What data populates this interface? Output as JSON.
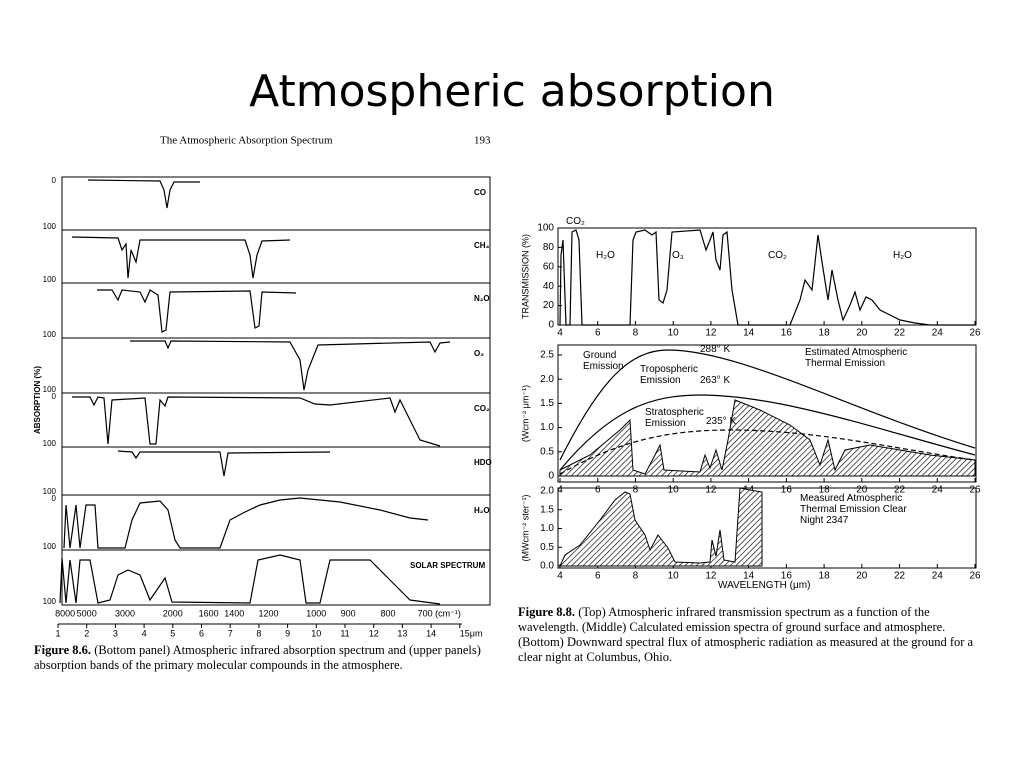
{
  "title": "Atmospheric absorption",
  "figure_8_6": {
    "running_head": "The Atmospheric Absorption Spectrum",
    "page_number": "193",
    "y_axis_label": "ABSORPTION (%)",
    "panels": [
      {
        "label": "CO",
        "ticks": [
          "0",
          "100"
        ]
      },
      {
        "label": "CH₄",
        "ticks": [
          "100"
        ]
      },
      {
        "label": "N₂O",
        "ticks": [
          "100"
        ]
      },
      {
        "label": "O₃",
        "ticks": [
          "100"
        ]
      },
      {
        "label": "CO₂",
        "ticks": [
          "0",
          "100"
        ]
      },
      {
        "label": "HDO",
        "ticks": [
          "100"
        ]
      },
      {
        "label": "H₂O",
        "ticks": [
          "0",
          "100"
        ]
      },
      {
        "label": "SOLAR SPECTRUM",
        "ticks": [
          "100"
        ]
      }
    ],
    "wavenumber_ticks": [
      "8000",
      "5000",
      "3000",
      "2000",
      "1600",
      "1400",
      "1200",
      "1000",
      "900",
      "800",
      "700 (cm⁻¹)"
    ],
    "wavelength_ticks": [
      "1",
      "2",
      "3",
      "4",
      "5",
      "6",
      "7",
      "8",
      "9",
      "10",
      "11",
      "12",
      "13",
      "14",
      "15μm"
    ],
    "caption": {
      "label": "Figure 8.6.",
      "text": "(Bottom panel) Atmospheric infrared absorption spectrum and (upper panels) absorption bands of the primary molecular compounds in the atmosphere."
    }
  },
  "figure_8_8": {
    "top": {
      "y_axis_label": "TRANSMISSION (%)",
      "yticks": [
        "0",
        "20",
        "40",
        "60",
        "80",
        "100"
      ],
      "xticks": [
        "4",
        "6",
        "8",
        "10",
        "12",
        "14",
        "16",
        "18",
        "20",
        "22",
        "24",
        "26"
      ],
      "band_labels": [
        "CO₂",
        "H₂O",
        "O₃",
        "CO₂",
        "H₂O"
      ]
    },
    "middle": {
      "y_axis_label": "(Wcm⁻² μm⁻¹)",
      "yticks": [
        "0",
        "0.5",
        "1.0",
        "1.5",
        "2.0",
        "2.5"
      ],
      "xticks": [
        "4",
        "6",
        "8",
        "10",
        "12",
        "14",
        "16",
        "18",
        "20",
        "22",
        "24",
        "26"
      ],
      "annotations": [
        "Ground Emission",
        "Tropospheric Emission",
        "Stratospheric Emission",
        "288° K",
        "263° K",
        "235° K",
        "Estimated Atmospheric Thermal Emission"
      ]
    },
    "bottom": {
      "y_axis_label": "(MWcm⁻² ster⁻¹)",
      "yticks": [
        "0.0",
        "0.5",
        "1.0",
        "1.5",
        "2.0"
      ],
      "xticks": [
        "4",
        "6",
        "8",
        "10",
        "12",
        "14",
        "16",
        "18",
        "20",
        "22",
        "24",
        "26"
      ],
      "annotation": "Measured Atmospheric Thermal Emission Clear Night 2347",
      "x_axis_label": "WAVELENGTH (μm)"
    },
    "caption": {
      "label": "Figure 8.8.",
      "text": "(Top) Atmospheric infrared transmission spectrum as a function of the wavelength. (Middle) Calculated emission spectra of ground surface and atmosphere. (Bottom) Downward spectral flux of atmospheric radiation as measured at the ground for a clear night at Columbus, Ohio."
    }
  }
}
